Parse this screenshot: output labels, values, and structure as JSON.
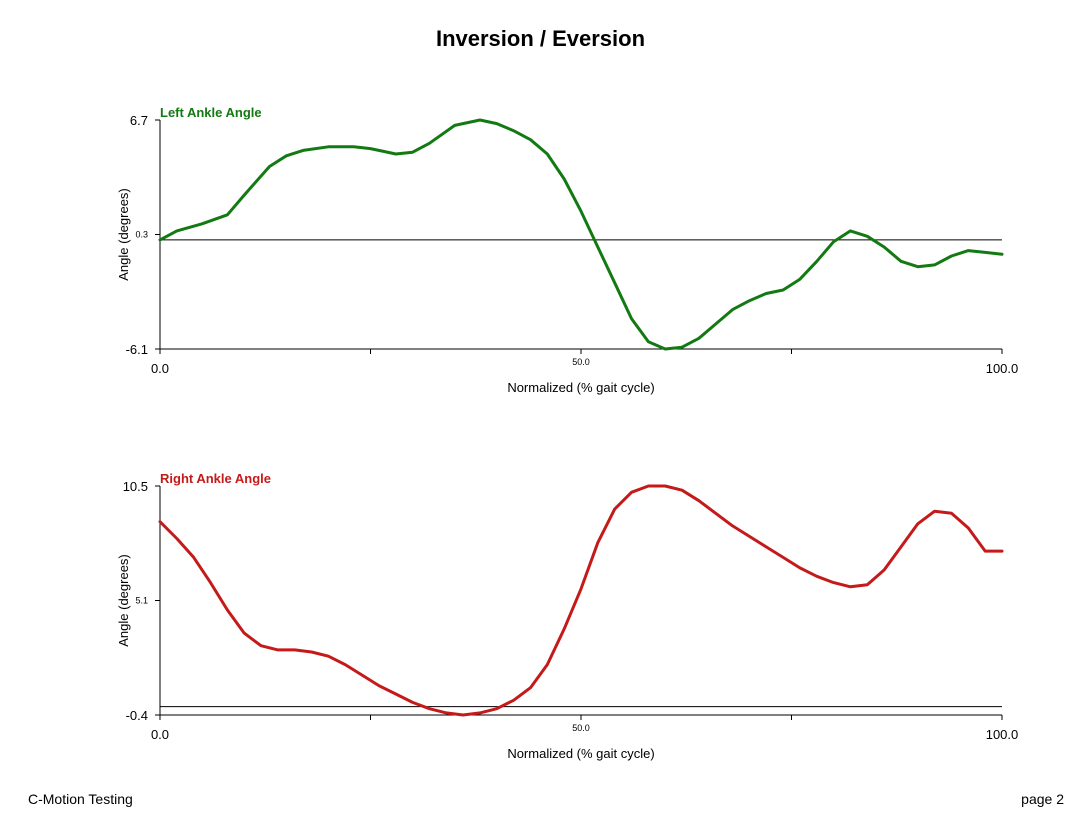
{
  "title": "Inversion / Eversion",
  "footer": {
    "left": "C-Motion Testing",
    "right": "page 2"
  },
  "chart_data": [
    {
      "type": "line",
      "title": "Left Ankle Angle",
      "color": "#137a13",
      "xlabel": "Normalized (% gait cycle)",
      "ylabel": "Angle (degrees)",
      "xlim": [
        0,
        100
      ],
      "ylim": [
        -6.1,
        6.7
      ],
      "xticks": [
        "0.0",
        "50.0",
        "100.0"
      ],
      "yticks": [
        "6.7",
        "0.3",
        "-6.1"
      ],
      "reference_line": 0.0,
      "series": [
        {
          "x": [
            0,
            2,
            5,
            8,
            10,
            13,
            15,
            17,
            20,
            23,
            25,
            28,
            30,
            32,
            35,
            38,
            40,
            42,
            44,
            46,
            48,
            50,
            52,
            54,
            56,
            58,
            60,
            62,
            64,
            66,
            68,
            70,
            72,
            74,
            76,
            78,
            80,
            82,
            84,
            86,
            88,
            90,
            92,
            94,
            96,
            98,
            100
          ],
          "y": [
            0.0,
            0.5,
            0.9,
            1.4,
            2.5,
            4.1,
            4.7,
            5.0,
            5.2,
            5.2,
            5.1,
            4.8,
            4.9,
            5.4,
            6.4,
            6.7,
            6.5,
            6.1,
            5.6,
            4.8,
            3.4,
            1.6,
            -0.4,
            -2.4,
            -4.4,
            -5.7,
            -6.1,
            -6.0,
            -5.5,
            -4.7,
            -3.9,
            -3.4,
            -3.0,
            -2.8,
            -2.2,
            -1.2,
            -0.1,
            0.5,
            0.2,
            -0.4,
            -1.2,
            -1.5,
            -1.4,
            -0.9,
            -0.6,
            -0.7,
            -0.8
          ]
        }
      ]
    },
    {
      "type": "line",
      "title": "Right Ankle Angle",
      "color": "#c41a1a",
      "xlabel": "Normalized (% gait cycle)",
      "ylabel": "Angle (degrees)",
      "xlim": [
        0,
        100
      ],
      "ylim": [
        -0.4,
        10.5
      ],
      "xticks": [
        "0.0",
        "50.0",
        "100.0"
      ],
      "yticks": [
        "10.5",
        "5.1",
        "-0.4"
      ],
      "reference_line": 0.0,
      "series": [
        {
          "x": [
            0,
            2,
            4,
            6,
            8,
            10,
            12,
            14,
            16,
            18,
            20,
            22,
            24,
            26,
            28,
            30,
            32,
            34,
            36,
            38,
            40,
            42,
            44,
            46,
            48,
            50,
            52,
            54,
            56,
            58,
            60,
            62,
            64,
            66,
            68,
            70,
            72,
            74,
            76,
            78,
            80,
            82,
            84,
            86,
            88,
            90,
            92,
            94,
            96,
            98,
            100
          ],
          "y": [
            8.8,
            8.0,
            7.1,
            5.9,
            4.6,
            3.5,
            2.9,
            2.7,
            2.7,
            2.6,
            2.4,
            2.0,
            1.5,
            1.0,
            0.6,
            0.2,
            -0.1,
            -0.3,
            -0.4,
            -0.3,
            -0.1,
            0.3,
            0.9,
            2.0,
            3.7,
            5.6,
            7.8,
            9.4,
            10.2,
            10.5,
            10.5,
            10.3,
            9.8,
            9.2,
            8.6,
            8.1,
            7.6,
            7.1,
            6.6,
            6.2,
            5.9,
            5.7,
            5.8,
            6.5,
            7.6,
            8.7,
            9.3,
            9.2,
            8.5,
            7.4,
            7.4
          ]
        }
      ]
    }
  ]
}
